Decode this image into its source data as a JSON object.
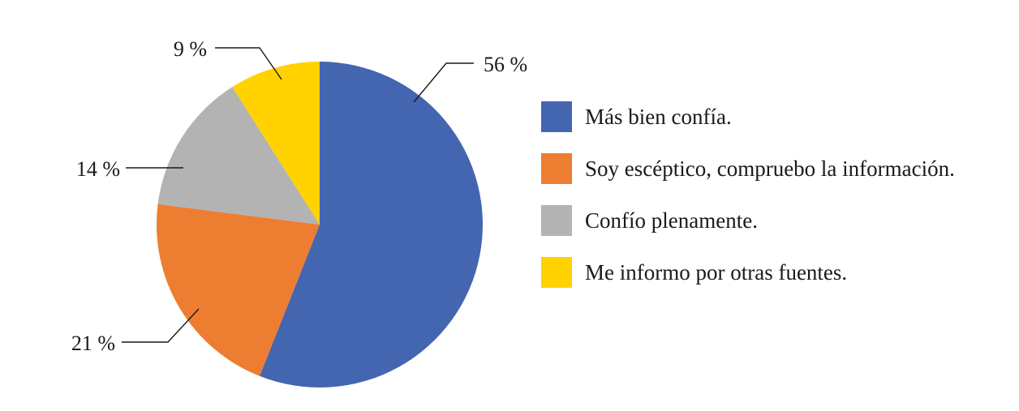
{
  "chart_data": {
    "type": "pie",
    "categories": [
      "Más bien confía.",
      "Soy escéptico, compruebo la información.",
      "Confío plenamente.",
      "Me informo por otras fuentes."
    ],
    "values": [
      56,
      21,
      14,
      9
    ],
    "data_labels": [
      "56 %",
      "21 %",
      "14 %",
      "9 %"
    ],
    "colors": [
      "#4466B0",
      "#ED7D31",
      "#B3B3B3",
      "#FFD200"
    ],
    "start_angle_deg": 0,
    "direction": "clockwise",
    "title": "",
    "legend_position": "right"
  }
}
